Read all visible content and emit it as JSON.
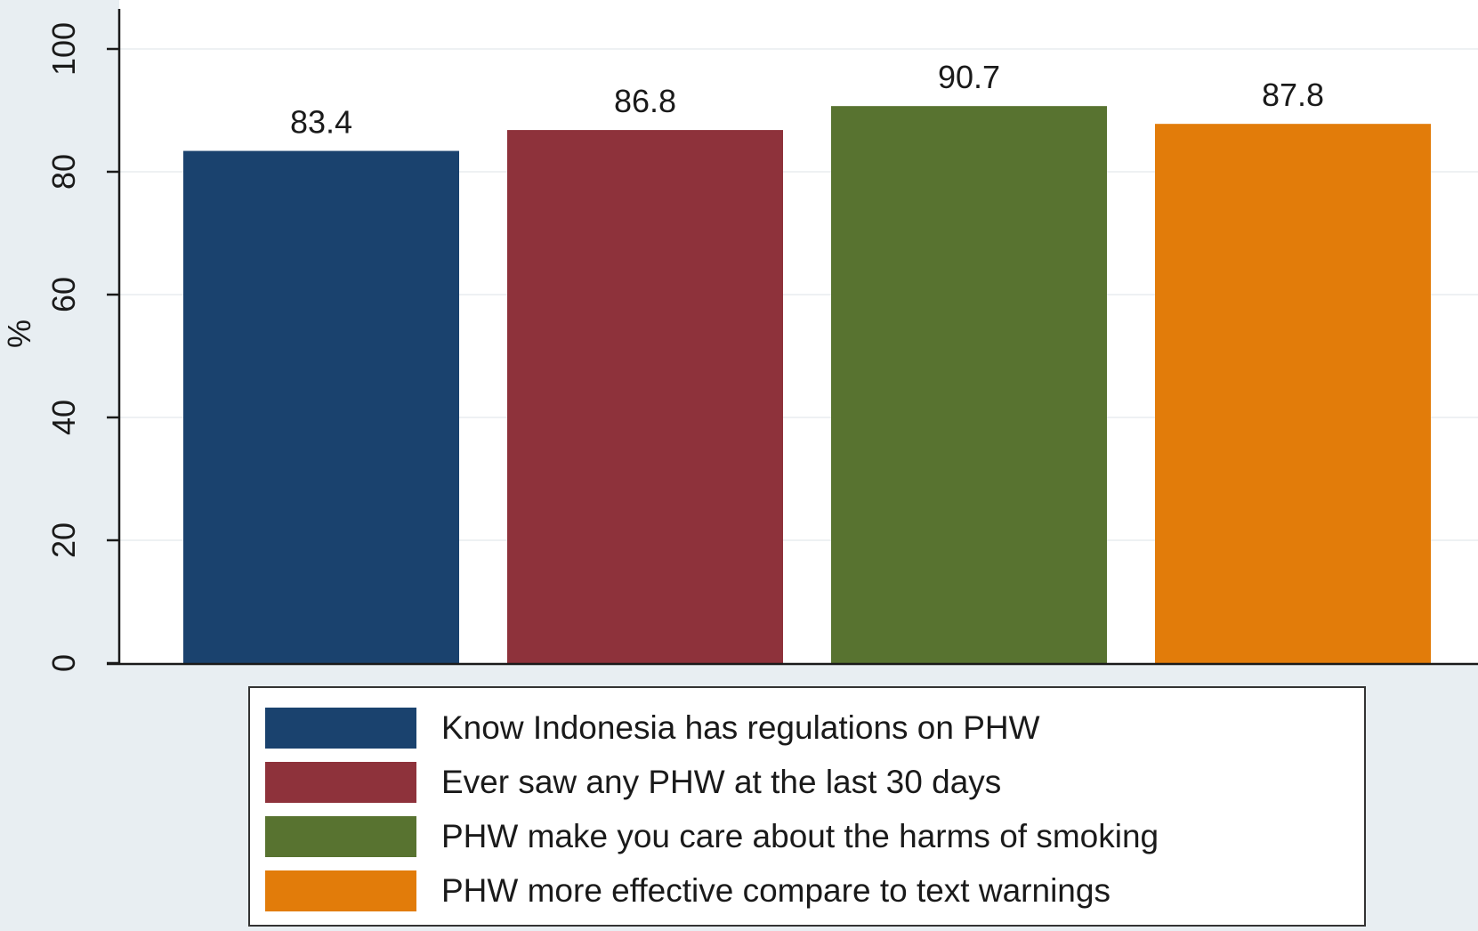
{
  "chart_data": {
    "type": "bar",
    "title": "",
    "xlabel": "",
    "ylabel": "%",
    "ylim": [
      0,
      100
    ],
    "yticks": [
      "0",
      "20",
      "40",
      "60",
      "80",
      "100"
    ],
    "grid": true,
    "legend_position": "bottom",
    "categories": [
      "Know Indonesia has regulations on PHW",
      "Ever saw any PHW at the last 30 days",
      "PHW make you care about the harms of smoking",
      "PHW more effective compare to text warnings"
    ],
    "values": [
      83.4,
      86.8,
      90.7,
      87.8
    ],
    "value_labels": [
      "83.4",
      "86.8",
      "90.7",
      "87.8"
    ],
    "colors": [
      "#1a426e",
      "#8e323b",
      "#587330",
      "#e27c0a"
    ]
  }
}
